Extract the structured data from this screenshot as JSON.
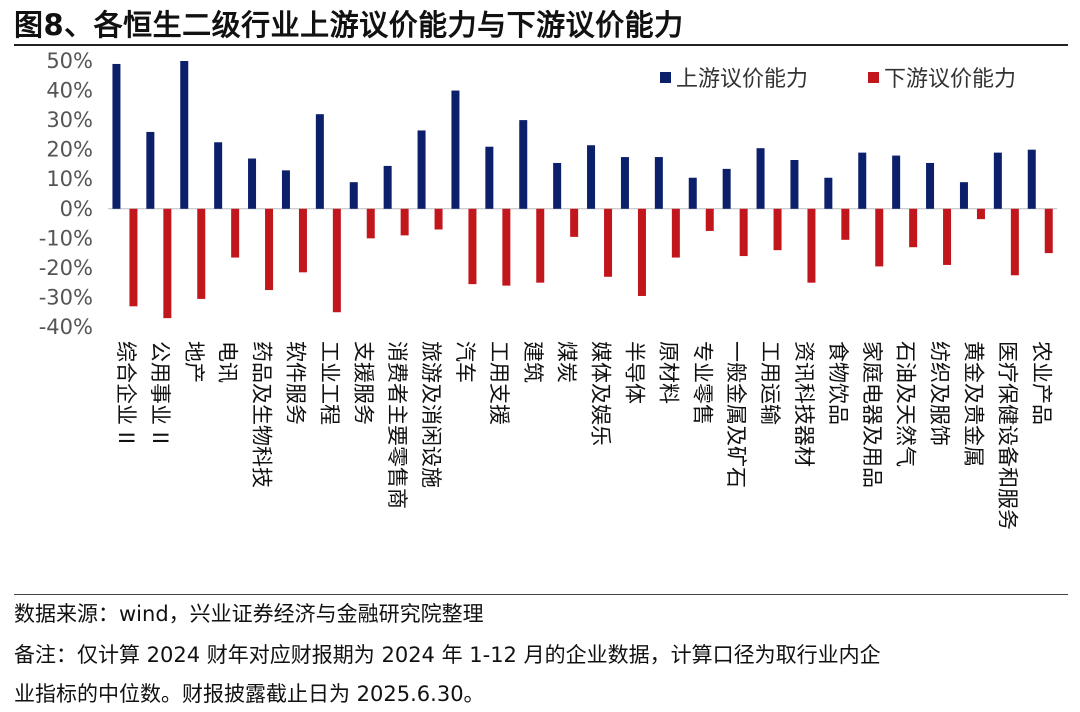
{
  "figure": {
    "title": "图8、各恒生二级行业上游议价能力与下游议价能力",
    "source": "数据来源：wind，兴业证券经济与金融研究院整理",
    "note_line1": "备注：仅计算 2024 财年对应财报期为 2024 年 1-12 月的企业数据，计算口径为取行业内企",
    "note_line2": "业指标的中位数。财报披露截止日为 2025.6.30。"
  },
  "chart_data": {
    "type": "bar",
    "title": "",
    "xlabel": "",
    "ylabel": "",
    "ylim": [
      -40,
      50
    ],
    "yticks": [
      50,
      40,
      30,
      20,
      10,
      0,
      -10,
      -20,
      -30,
      -40
    ],
    "ytick_labels": [
      "50%",
      "40%",
      "30%",
      "20%",
      "10%",
      "0%",
      "-10%",
      "-20%",
      "-30%",
      "-40%"
    ],
    "legend_position": "top-right",
    "grid": false,
    "categories": [
      "综合企业 II",
      "公用事业 II",
      "地产",
      "电讯",
      "药品及生物科技",
      "软件服务",
      "工业工程",
      "支援服务",
      "消费者主要零售商",
      "旅游及消闲设施",
      "汽车",
      "工用支援",
      "建筑",
      "煤炭",
      "媒体及娱乐",
      "半导体",
      "原材料",
      "专业零售",
      "一般金属及矿石",
      "工用运输",
      "资讯科技器材",
      "食物饮品",
      "家庭电器及用品",
      "石油及天然气",
      "纺织及服饰",
      "黄金及贵金属",
      "医疗保健设备和服务",
      "农业产品"
    ],
    "series": [
      {
        "name": "上游议价能力",
        "color": "#0b1f6b",
        "values": [
          49,
          26,
          50,
          22.5,
          17,
          13,
          32,
          9,
          14.5,
          26.5,
          40,
          21,
          30,
          15.5,
          21.5,
          17.5,
          17.5,
          10.5,
          13.5,
          20.5,
          16.5,
          10.5,
          19,
          18,
          15.5,
          9,
          19,
          20
        ]
      },
      {
        "name": "下游议价能力",
        "color": "#c0161c",
        "values": [
          -33,
          -37,
          -30.5,
          -16.5,
          -27.5,
          -21.5,
          -35,
          -10,
          -9,
          -7,
          -25.5,
          -26,
          -25,
          -9.5,
          -23,
          -29.5,
          -16.5,
          -7.5,
          -16,
          -14,
          -25,
          -10.5,
          -19.5,
          -13,
          -19,
          -3.5,
          -22.5,
          -15
        ]
      }
    ]
  }
}
